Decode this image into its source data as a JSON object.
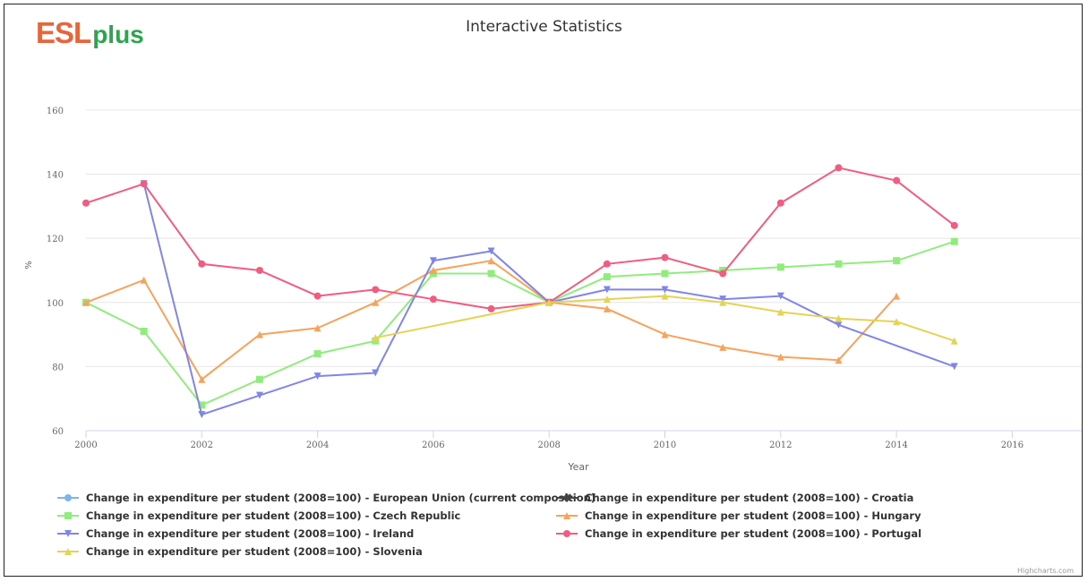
{
  "header": {
    "logo_esl": "ESL",
    "logo_plus": "plus",
    "title": "Interactive Statistics"
  },
  "credits": "Highcharts.com",
  "chart_data": {
    "type": "line",
    "xlabel": "Year",
    "ylabel": "%",
    "xlim": [
      2000,
      2017.2
    ],
    "ylim": [
      60,
      165
    ],
    "x_ticks": [
      2000,
      2002,
      2004,
      2006,
      2008,
      2010,
      2012,
      2014,
      2016
    ],
    "y_ticks": [
      60,
      80,
      100,
      120,
      140,
      160
    ],
    "grid": true,
    "legend_position": "bottom",
    "series": [
      {
        "name": "Change in expenditure per student (2008=100) - European Union (current composition)",
        "color": "#7cb5ec",
        "marker": "circle",
        "x": [],
        "values": []
      },
      {
        "name": "Change in expenditure per student (2008=100) - Croatia",
        "color": "#434348",
        "marker": "diamond",
        "x": [],
        "values": []
      },
      {
        "name": "Change in expenditure per student (2008=100) - Czech Republic",
        "color": "#90ed7d",
        "marker": "square",
        "x": [
          2000,
          2001,
          2002,
          2003,
          2004,
          2005,
          2006,
          2007,
          2008,
          2009,
          2010,
          2011,
          2012,
          2013,
          2014,
          2015
        ],
        "values": [
          100,
          91,
          68,
          76,
          84,
          88,
          109,
          109,
          100,
          108,
          109,
          110,
          111,
          112,
          113,
          119
        ]
      },
      {
        "name": "Change in expenditure per student (2008=100) - Hungary",
        "color": "#f7a35c",
        "marker": "triangle",
        "x": [
          2000,
          2001,
          2002,
          2003,
          2004,
          2005,
          2006,
          2007,
          2008,
          2009,
          2010,
          2011,
          2012,
          2013,
          2014
        ],
        "values": [
          100,
          107,
          76,
          90,
          92,
          100,
          110,
          113,
          100,
          98,
          90,
          86,
          83,
          82,
          102
        ]
      },
      {
        "name": "Change in expenditure per student (2008=100) - Ireland",
        "color": "#8085e9",
        "marker": "triangle-down",
        "x": [
          2001,
          2002,
          2003,
          2004,
          2005,
          2006,
          2007,
          2008,
          2009,
          2010,
          2011,
          2012,
          2013,
          2015
        ],
        "values": [
          137,
          65,
          71,
          77,
          78,
          113,
          116,
          100,
          104,
          104,
          101,
          102,
          93,
          80
        ]
      },
      {
        "name": "Change in expenditure per student (2008=100) - Portugal",
        "color": "#f15c80",
        "marker": "circle",
        "x": [
          2000,
          2001,
          2002,
          2003,
          2004,
          2005,
          2006,
          2007,
          2008,
          2009,
          2010,
          2011,
          2012,
          2013,
          2014,
          2015
        ],
        "values": [
          131,
          137,
          112,
          110,
          102,
          104,
          101,
          98,
          100,
          112,
          114,
          109,
          131,
          142,
          138,
          124
        ]
      },
      {
        "name": "Change in expenditure per student (2008=100) - Slovenia",
        "color": "#e4d354",
        "marker": "triangle",
        "x": [
          2005,
          2008,
          2009,
          2010,
          2011,
          2012,
          2013,
          2014,
          2015
        ],
        "values": [
          89,
          100,
          101,
          102,
          100,
          97,
          95,
          94,
          88
        ]
      }
    ]
  }
}
